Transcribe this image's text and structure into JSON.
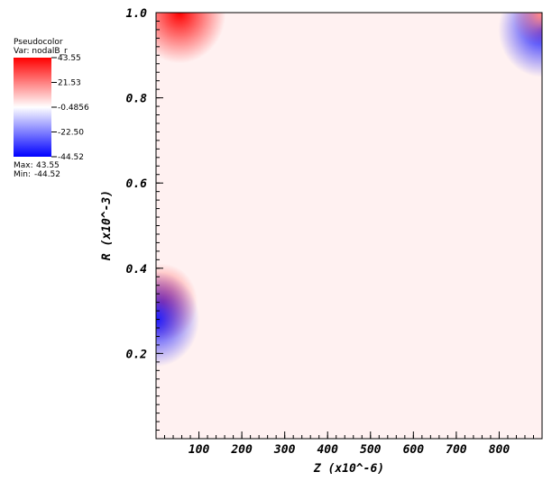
{
  "chart_data": {
    "type": "pseudocolor",
    "legend_title": "Pseudocolor",
    "variable": "Var: nodalB_r",
    "max_label": "Max:",
    "max": 43.55,
    "min_label": "Min:",
    "min": -44.52,
    "colorbar_ticks": [
      43.55,
      21.53,
      -0.4856,
      {
        "value": -22.5,
        "label": "-22.50"
      },
      -44.52
    ],
    "colors": {
      "high": "#ff0000",
      "mid": "#ffffff",
      "low": "#0000ff"
    },
    "xlabel": "Z  (x10^-6)",
    "ylabel": "R  (x10^-3)",
    "xlim": [
      0,
      900
    ],
    "ylim": [
      0,
      1
    ],
    "xticks": [
      100,
      200,
      300,
      400,
      500,
      600,
      700,
      800
    ],
    "yticks": [
      0.2,
      0.4,
      0.6,
      0.8,
      {
        "value": 1,
        "label": "1.0"
      }
    ],
    "background_value": 2,
    "x": [
      55,
      15,
      0,
      899,
      895
    ],
    "y": [
      1.0,
      0.32,
      0.28,
      0.96,
      0.995
    ],
    "values": [
      43.55,
      30,
      -40,
      -40,
      20
    ]
  }
}
